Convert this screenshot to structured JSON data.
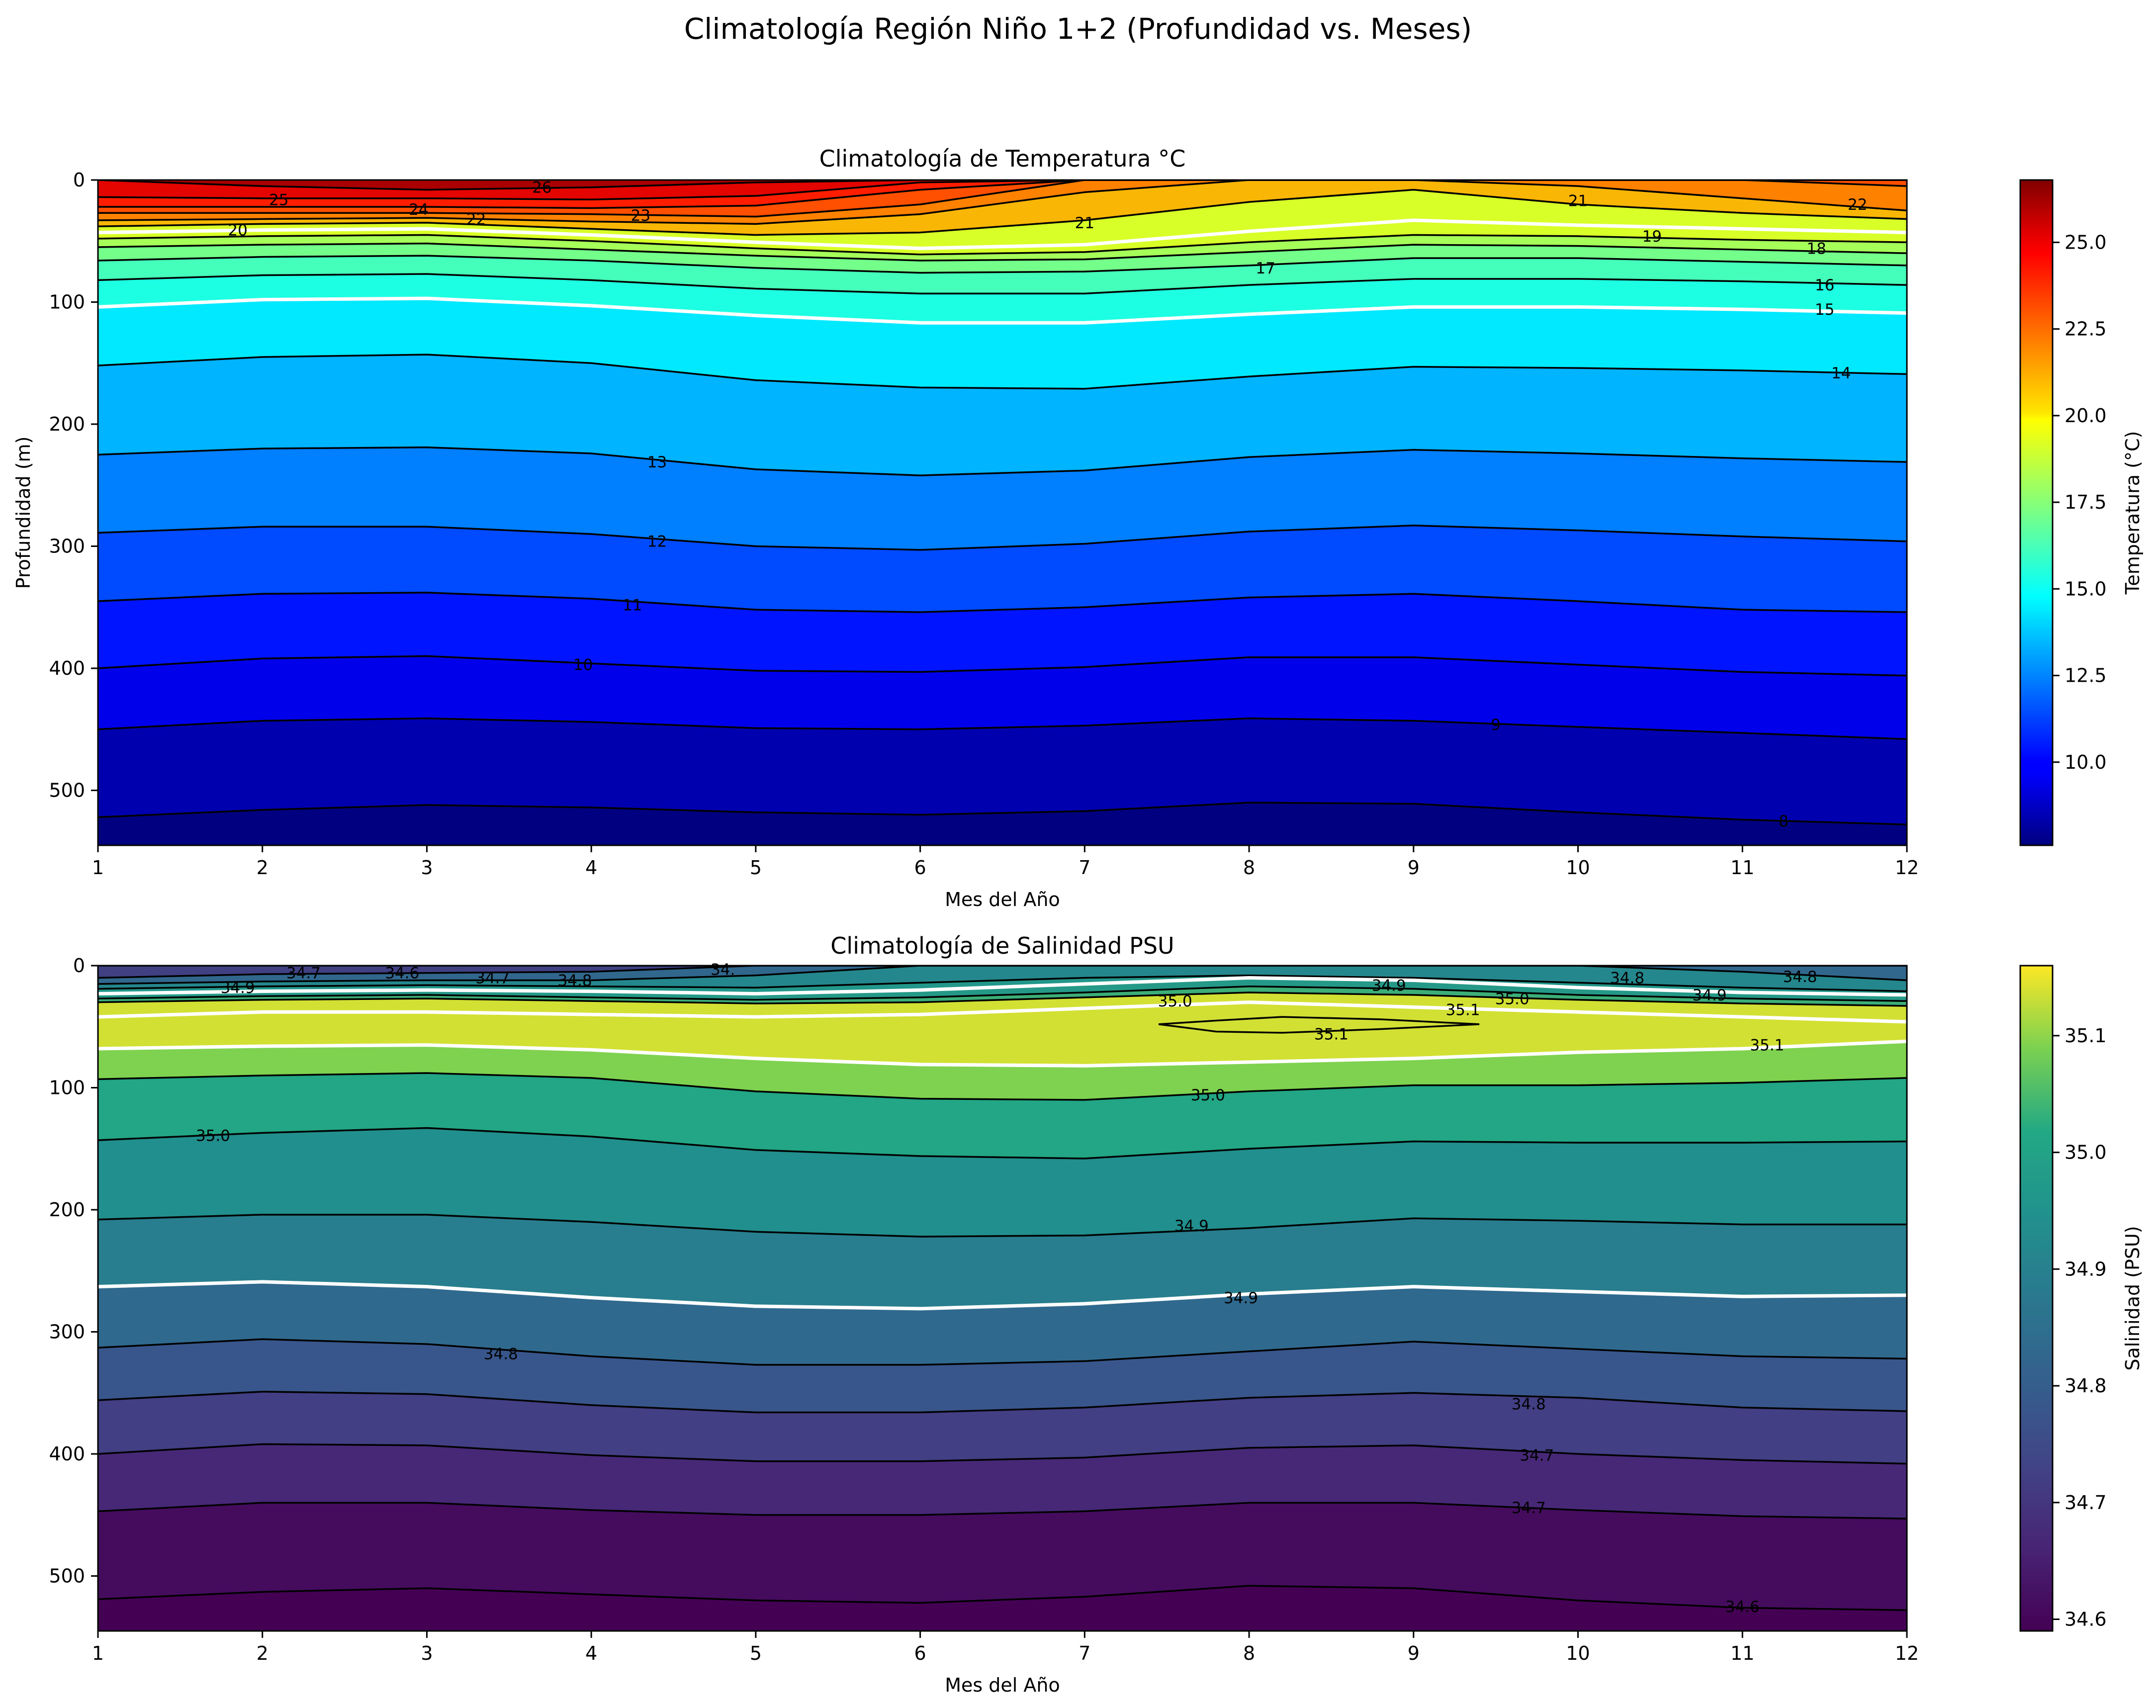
{
  "figure": {
    "suptitle": "Climatología Región Niño 1+2 (Profundidad vs. Meses)"
  },
  "chart_data": [
    {
      "type": "heatmap",
      "id": "temp",
      "title": "Climatología de Temperatura °C",
      "xlabel": "Mes del Año",
      "ylabel": "Profundidad (m)",
      "xlim": [
        1,
        12
      ],
      "ylim": [
        545,
        0
      ],
      "x_ticks": [
        1,
        2,
        3,
        4,
        5,
        6,
        7,
        8,
        9,
        10,
        11,
        12
      ],
      "y_ticks": [
        0,
        100,
        200,
        300,
        400,
        500
      ],
      "colormap": "jet",
      "vrange": [
        7.6,
        26.8
      ],
      "colorbar": {
        "label": "Temperatura (°C)",
        "ticks": [
          "10.0",
          "12.5",
          "15.0",
          "17.5",
          "20.0",
          "22.5",
          "25.0"
        ],
        "tick_values": [
          10.0,
          12.5,
          15.0,
          17.5,
          20.0,
          22.5,
          25.0
        ]
      },
      "months": [
        1,
        2,
        3,
        4,
        5,
        6,
        7,
        8,
        9,
        10,
        11,
        12
      ],
      "profiles": [
        {
          "level": 20,
          "d": [
            43,
            41,
            40,
            45,
            51,
            56,
            53,
            42,
            33,
            37,
            40,
            43
          ],
          "color": "#ffffff"
        },
        {
          "level": 15,
          "d": [
            104,
            98,
            97,
            103,
            111,
            117,
            117,
            110,
            104,
            104,
            106,
            109
          ],
          "color": "#ffffff"
        },
        {
          "level": 14,
          "d": [
            152,
            145,
            143,
            150,
            164,
            170,
            171,
            161,
            153,
            154,
            156,
            159
          ],
          "color": "#000000"
        },
        {
          "level": 13,
          "d": [
            225,
            220,
            219,
            224,
            237,
            242,
            238,
            227,
            221,
            224,
            228,
            231
          ],
          "color": "#000000"
        },
        {
          "level": 12,
          "d": [
            289,
            284,
            284,
            290,
            300,
            303,
            298,
            288,
            283,
            287,
            292,
            296
          ],
          "color": "#000000"
        },
        {
          "level": 11,
          "d": [
            345,
            339,
            338,
            343,
            352,
            354,
            350,
            342,
            339,
            345,
            352,
            354
          ],
          "color": "#000000"
        },
        {
          "level": 10,
          "d": [
            400,
            392,
            390,
            396,
            402,
            403,
            399,
            391,
            391,
            397,
            403,
            406
          ],
          "color": "#000000"
        },
        {
          "level": 9,
          "d": [
            450,
            443,
            441,
            444,
            449,
            450,
            447,
            441,
            443,
            448,
            453,
            458
          ],
          "color": "#000000"
        },
        {
          "level": 8,
          "d": [
            522,
            516,
            512,
            514,
            518,
            520,
            517,
            510,
            511,
            518,
            524,
            528
          ],
          "color": "#000000"
        }
      ],
      "extra_contours": [
        {
          "level": 19,
          "d": [
            48,
            46,
            45,
            50,
            56,
            61,
            59,
            51,
            45,
            46,
            49,
            51
          ],
          "color": "#000000"
        },
        {
          "level": 18,
          "d": [
            55,
            53,
            52,
            57,
            62,
            66,
            65,
            59,
            53,
            54,
            57,
            60
          ],
          "color": "#000000"
        },
        {
          "level": 17,
          "d": [
            66,
            63,
            62,
            66,
            72,
            76,
            75,
            70,
            64,
            64,
            67,
            70
          ],
          "color": "#000000"
        },
        {
          "level": 16,
          "d": [
            82,
            78,
            77,
            82,
            89,
            93,
            93,
            86,
            81,
            81,
            83,
            86
          ],
          "color": "#000000"
        },
        {
          "level": 21,
          "d": [
            38,
            36,
            35,
            40,
            45,
            43,
            33,
            18,
            8,
            20,
            27,
            32
          ],
          "color": "#000000"
        },
        {
          "level": 22,
          "d": [
            33,
            32,
            31,
            34,
            36,
            28,
            10,
            0,
            0,
            5,
            15,
            25
          ],
          "color": "#000000"
        },
        {
          "level": 23,
          "d": [
            27,
            27,
            27,
            28,
            30,
            20,
            0,
            0,
            0,
            0,
            0,
            5
          ],
          "color": "#000000"
        },
        {
          "level": 24,
          "d": [
            22,
            22,
            22,
            23,
            21,
            8,
            0,
            0,
            0,
            0,
            0,
            0
          ],
          "color": "#000000"
        },
        {
          "level": 25,
          "d": [
            14,
            15,
            15,
            16,
            13,
            2,
            0,
            0,
            0,
            0,
            0,
            0
          ],
          "color": "#000000"
        },
        {
          "level": 26,
          "d": [
            0,
            5,
            8,
            6,
            2,
            0,
            0,
            0,
            0,
            0,
            0,
            0
          ],
          "color": "#000000"
        }
      ],
      "contour_labels": [
        {
          "text": "26",
          "x": 3.7,
          "y": 6
        },
        {
          "text": "25",
          "x": 2.1,
          "y": 16
        },
        {
          "text": "24",
          "x": 2.95,
          "y": 24
        },
        {
          "text": "22",
          "x": 3.3,
          "y": 32
        },
        {
          "text": "23",
          "x": 4.3,
          "y": 29
        },
        {
          "text": "20",
          "x": 1.85,
          "y": 41
        },
        {
          "text": "21",
          "x": 7.0,
          "y": 35
        },
        {
          "text": "21",
          "x": 10.0,
          "y": 17
        },
        {
          "text": "22",
          "x": 11.7,
          "y": 20
        },
        {
          "text": "19",
          "x": 10.45,
          "y": 46
        },
        {
          "text": "18",
          "x": 11.45,
          "y": 56
        },
        {
          "text": "17",
          "x": 8.1,
          "y": 72
        },
        {
          "text": "16",
          "x": 11.5,
          "y": 86
        },
        {
          "text": "15",
          "x": 11.5,
          "y": 106
        },
        {
          "text": "14",
          "x": 11.6,
          "y": 158
        },
        {
          "text": "13",
          "x": 4.4,
          "y": 231
        },
        {
          "text": "12",
          "x": 4.4,
          "y": 296
        },
        {
          "text": "11",
          "x": 4.25,
          "y": 348
        },
        {
          "text": "10",
          "x": 3.95,
          "y": 397
        },
        {
          "text": "9",
          "x": 9.5,
          "y": 446
        },
        {
          "text": "8",
          "x": 11.25,
          "y": 525
        }
      ]
    },
    {
      "type": "heatmap",
      "id": "sal",
      "title": "Climatología de Salinidad PSU",
      "xlabel": "Mes del Año",
      "ylabel": "",
      "xlim": [
        1,
        12
      ],
      "ylim": [
        545,
        0
      ],
      "x_ticks": [
        1,
        2,
        3,
        4,
        5,
        6,
        7,
        8,
        9,
        10,
        11,
        12
      ],
      "y_ticks": [
        0,
        100,
        200,
        300,
        400,
        500
      ],
      "colormap": "viridis",
      "vrange": [
        34.59,
        35.16
      ],
      "colorbar": {
        "label": "Salinidad (PSU)",
        "ticks": [
          "34.6",
          "34.7",
          "34.8",
          "34.9",
          "35.0",
          "35.1"
        ],
        "tick_values": [
          34.6,
          34.7,
          34.8,
          34.9,
          35.0,
          35.1
        ]
      },
      "months": [
        1,
        2,
        3,
        4,
        5,
        6,
        7,
        8,
        9,
        10,
        11,
        12
      ],
      "profiles": [
        {
          "level": 34.65,
          "d": [
            0,
            0,
            0,
            0,
            0,
            0,
            0,
            0,
            0,
            0,
            0,
            0
          ],
          "color": "#000000"
        },
        {
          "level": 34.88,
          "d": [
            23,
            21,
            20,
            21,
            23,
            20,
            15,
            10,
            12,
            18,
            22,
            24
          ],
          "color": "#ffffff"
        },
        {
          "level": 35.125,
          "d": [
            42,
            38,
            38,
            40,
            42,
            40,
            35,
            30,
            34,
            38,
            42,
            46
          ],
          "color": "#ffffff"
        },
        {
          "level": 35.125,
          "d": [
            68,
            66,
            65,
            69,
            76,
            81,
            82,
            79,
            76,
            71,
            68,
            62
          ],
          "color": "#ffffff"
        },
        {
          "level": 35.08,
          "d": [
            93,
            90,
            88,
            92,
            103,
            109,
            110,
            103,
            98,
            98,
            96,
            92
          ],
          "color": "#000000"
        },
        {
          "level": 35.0,
          "d": [
            143,
            137,
            133,
            140,
            151,
            156,
            158,
            150,
            144,
            145,
            145,
            144
          ],
          "color": "#000000"
        },
        {
          "level": 34.93,
          "d": [
            208,
            204,
            204,
            210,
            218,
            222,
            221,
            215,
            207,
            209,
            212,
            212
          ],
          "color": "#000000"
        },
        {
          "level": 34.88,
          "d": [
            263,
            259,
            263,
            272,
            279,
            281,
            277,
            269,
            263,
            267,
            271,
            270
          ],
          "color": "#ffffff"
        },
        {
          "level": 34.82,
          "d": [
            313,
            306,
            310,
            320,
            327,
            327,
            324,
            316,
            308,
            314,
            320,
            322
          ],
          "color": "#000000"
        },
        {
          "level": 34.77,
          "d": [
            356,
            349,
            351,
            360,
            366,
            366,
            362,
            354,
            350,
            354,
            362,
            365
          ],
          "color": "#000000"
        },
        {
          "level": 34.71,
          "d": [
            400,
            392,
            393,
            401,
            406,
            406,
            403,
            395,
            393,
            400,
            405,
            408
          ],
          "color": "#000000"
        },
        {
          "level": 34.66,
          "d": [
            447,
            440,
            440,
            446,
            450,
            450,
            447,
            440,
            440,
            446,
            451,
            453
          ],
          "color": "#000000"
        },
        {
          "level": 34.6,
          "d": [
            519,
            513,
            510,
            515,
            520,
            522,
            517,
            508,
            510,
            520,
            526,
            528
          ],
          "color": "#000000"
        }
      ],
      "extra_contours": [
        {
          "level": 35.0,
          "d": [
            30,
            28,
            27,
            29,
            31,
            30,
            26,
            22,
            24,
            28,
            31,
            33
          ],
          "color": "#000000"
        },
        {
          "level": 34.95,
          "d": [
            27,
            25,
            24,
            26,
            28,
            26,
            22,
            17,
            19,
            24,
            27,
            29
          ],
          "color": "#000000"
        },
        {
          "level": 34.9,
          "d": [
            19,
            17,
            16,
            17,
            18,
            14,
            10,
            8,
            10,
            14,
            18,
            21
          ],
          "color": "#000000"
        },
        {
          "level": 34.8,
          "d": [
            15,
            13,
            12,
            12,
            8,
            0,
            0,
            0,
            0,
            0,
            5,
            12
          ],
          "color": "#000000"
        },
        {
          "level": 34.7,
          "d": [
            10,
            7,
            6,
            5,
            0,
            0,
            0,
            0,
            0,
            0,
            0,
            0
          ],
          "color": "#000000"
        }
      ],
      "contour_labels": [
        {
          "text": "34.7",
          "x": 2.25,
          "y": 6
        },
        {
          "text": "34.6",
          "x": 2.85,
          "y": 6
        },
        {
          "text": "34.7",
          "x": 3.4,
          "y": 10
        },
        {
          "text": "34.8",
          "x": 3.9,
          "y": 12
        },
        {
          "text": "34.9",
          "x": 1.85,
          "y": 18
        },
        {
          "text": "34.",
          "x": 4.8,
          "y": 3
        },
        {
          "text": "35.0",
          "x": 7.55,
          "y": 29
        },
        {
          "text": "34.9",
          "x": 8.85,
          "y": 16
        },
        {
          "text": "35.0",
          "x": 9.6,
          "y": 27
        },
        {
          "text": "35.1",
          "x": 9.3,
          "y": 36
        },
        {
          "text": "34.8",
          "x": 10.3,
          "y": 10
        },
        {
          "text": "34.9",
          "x": 10.8,
          "y": 24
        },
        {
          "text": "34.8",
          "x": 11.35,
          "y": 9
        },
        {
          "text": "35.1",
          "x": 8.5,
          "y": 56
        },
        {
          "text": "35.1",
          "x": 11.15,
          "y": 65
        },
        {
          "text": "35.0",
          "x": 1.7,
          "y": 139
        },
        {
          "text": "35.0",
          "x": 7.75,
          "y": 106
        },
        {
          "text": "34.9",
          "x": 7.65,
          "y": 213
        },
        {
          "text": "34.9",
          "x": 7.95,
          "y": 272
        },
        {
          "text": "34.8",
          "x": 3.45,
          "y": 318
        },
        {
          "text": "34.8",
          "x": 9.7,
          "y": 359
        },
        {
          "text": "34.7",
          "x": 9.75,
          "y": 401
        },
        {
          "text": "34.7",
          "x": 9.7,
          "y": 444
        },
        {
          "text": "34.6",
          "x": 11.0,
          "y": 525
        }
      ],
      "closed_contours": [
        {
          "level": 35.1,
          "x": [
            7.45,
            7.8,
            8.2,
            8.8,
            9.4,
            8.8,
            8.2,
            7.8
          ],
          "y": [
            48,
            45,
            42,
            44,
            48,
            52,
            55,
            54
          ]
        }
      ]
    }
  ]
}
